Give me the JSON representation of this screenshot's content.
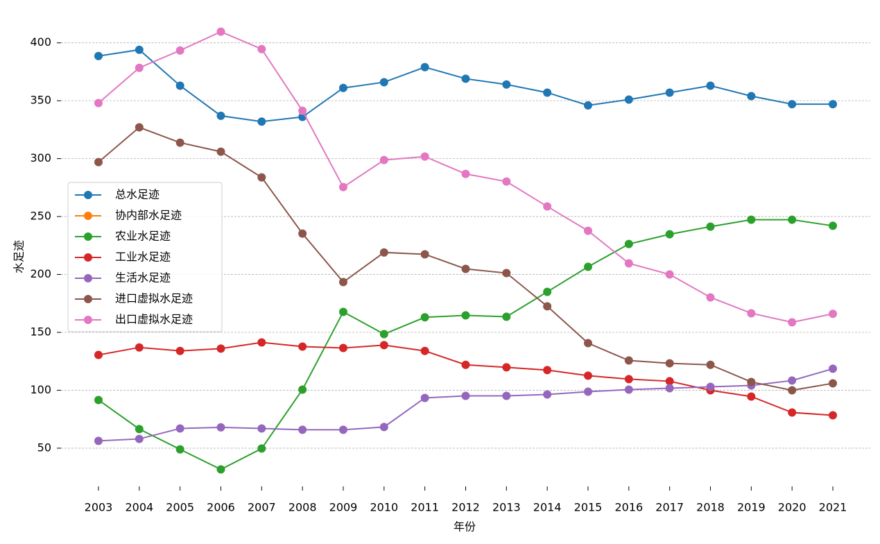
{
  "chart_data": {
    "type": "line",
    "categories": [
      "2003",
      "2004",
      "2005",
      "2006",
      "2007",
      "2008",
      "2009",
      "2010",
      "2011",
      "2012",
      "2013",
      "2014",
      "2015",
      "2016",
      "2017",
      "2018",
      "2019",
      "2020",
      "2021"
    ],
    "xlabel": "年份",
    "ylabel": "水足迹",
    "ylim": [
      17,
      413
    ],
    "yticks": [
      50,
      100,
      150,
      200,
      250,
      300,
      350,
      400
    ],
    "grid": true,
    "legend": "center left",
    "series": [
      {
        "name": "总水足迹",
        "color": "#1f77b4",
        "values": [
          388.6,
          394,
          363,
          337,
          332,
          336,
          361,
          366,
          379,
          369,
          364,
          357,
          346,
          351,
          357,
          363,
          354,
          347,
          347
        ]
      },
      {
        "name": "协内部水足迹",
        "color": "#ff7f0e",
        "values": [
          null,
          null,
          null,
          null,
          null,
          null,
          null,
          null,
          null,
          null,
          null,
          null,
          null,
          null,
          null,
          null,
          null,
          null,
          null
        ]
      },
      {
        "name": "农业水足迹",
        "color": "#2ca02c",
        "values": [
          91.6,
          66.5,
          49,
          31.7,
          49.7,
          100.6,
          167.7,
          148.5,
          163,
          164.7,
          163.5,
          185,
          206.6,
          226.3,
          234.7,
          241.3,
          247.3,
          247.3,
          242
        ]
      },
      {
        "name": "工业水足迹",
        "color": "#d62728",
        "values": [
          130.5,
          137,
          134,
          136,
          141.3,
          137.7,
          136.5,
          139,
          134,
          122,
          119.8,
          117.4,
          112.6,
          109.6,
          107.8,
          100,
          94.6,
          80.8,
          78.4
        ]
      },
      {
        "name": "生活水足迹",
        "color": "#9467bd",
        "values": [
          56.3,
          58,
          67,
          68,
          67,
          65.9,
          65.9,
          68.3,
          93.4,
          95.2,
          95.2,
          96.4,
          98.8,
          100.6,
          101.8,
          103,
          104.2,
          108.4,
          118.6
        ]
      },
      {
        "name": "进口虚拟水足迹",
        "color": "#8c564b",
        "values": [
          297,
          327,
          313.8,
          306,
          283.8,
          235.3,
          193.4,
          219,
          217.4,
          204.8,
          201.2,
          172.5,
          140.7,
          125.7,
          123.3,
          122,
          107.2,
          100,
          106
        ]
      },
      {
        "name": "出口虚拟水足迹",
        "color": "#e377c2",
        "values": [
          348,
          378.4,
          393.4,
          409.6,
          394.6,
          341.3,
          275.4,
          298.8,
          301.8,
          286.8,
          280.2,
          258.7,
          237.7,
          209.6,
          200,
          180.2,
          166.5,
          158.7,
          166
        ]
      }
    ]
  }
}
